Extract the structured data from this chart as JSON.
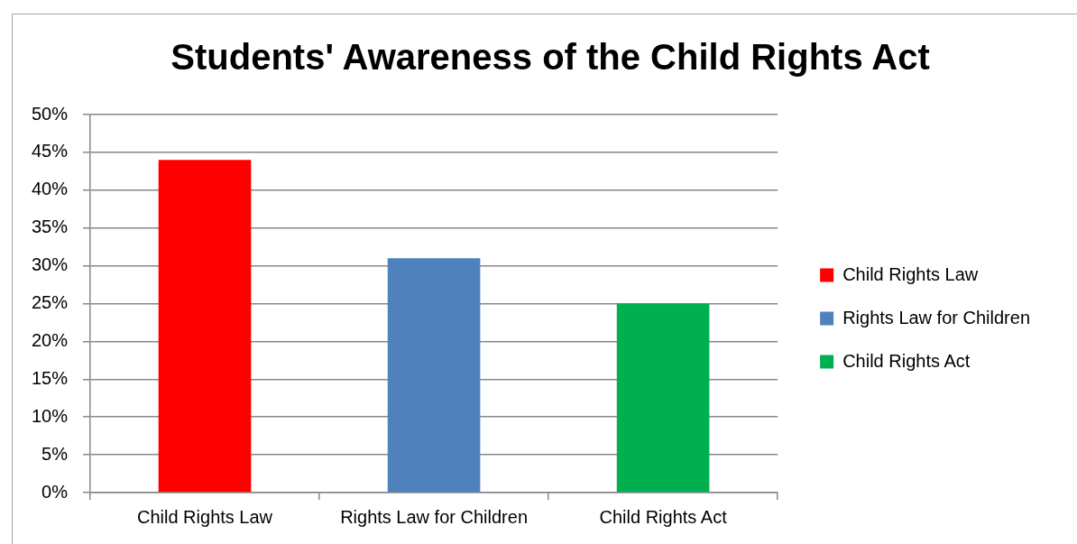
{
  "chart_data": {
    "type": "bar",
    "title": "Students' Awareness of the Child Rights Act",
    "categories": [
      "Child Rights Law",
      "Rights Law for Children",
      "Child Rights Act"
    ],
    "series": [
      {
        "name": "Child Rights Law",
        "color": "#ff0000",
        "values": [
          44,
          null,
          null
        ]
      },
      {
        "name": "Rights Law for Children",
        "color": "#4f81bd",
        "values": [
          null,
          31,
          null
        ]
      },
      {
        "name": "Child Rights Act",
        "color": "#00b050",
        "values": [
          null,
          null,
          25
        ]
      }
    ],
    "ylim": [
      0,
      50
    ],
    "yticks": [
      {
        "value": 0,
        "label": "0%"
      },
      {
        "value": 5,
        "label": "5%"
      },
      {
        "value": 10,
        "label": "10%"
      },
      {
        "value": 15,
        "label": "15%"
      },
      {
        "value": 20,
        "label": "20%"
      },
      {
        "value": 25,
        "label": "25%"
      },
      {
        "value": 30,
        "label": "30%"
      },
      {
        "value": 35,
        "label": "35%"
      },
      {
        "value": 40,
        "label": "40%"
      },
      {
        "value": 45,
        "label": "45%"
      },
      {
        "value": 50,
        "label": "50%"
      }
    ],
    "grid": "y",
    "legend": "right"
  }
}
